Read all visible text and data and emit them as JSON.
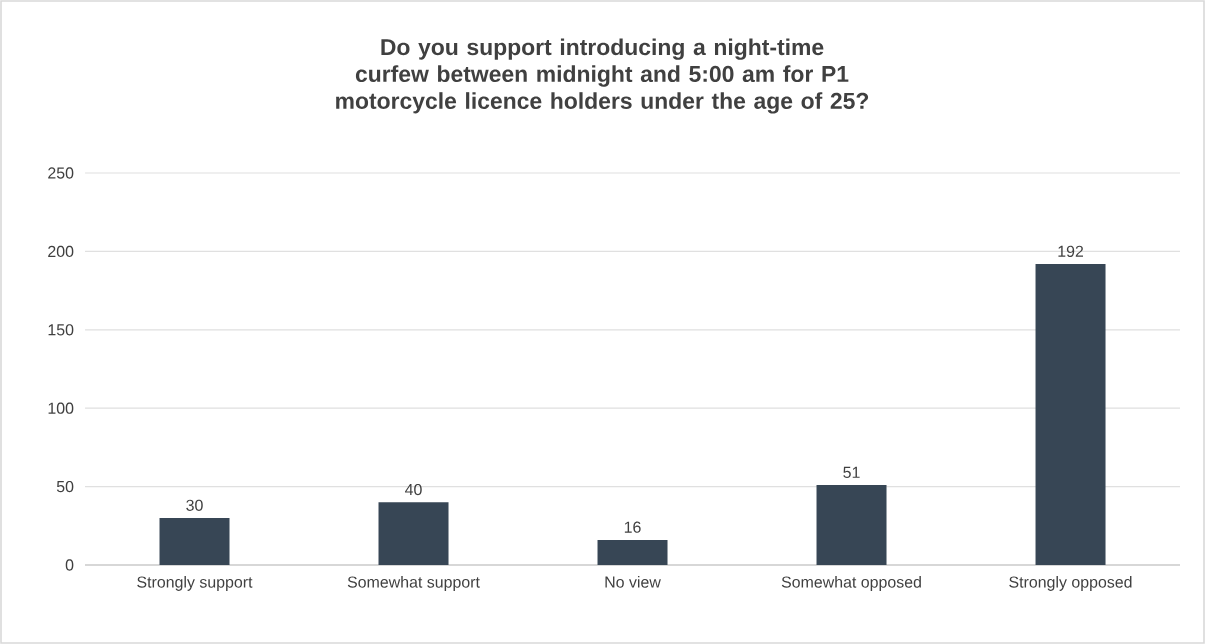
{
  "chart_data": {
    "type": "bar",
    "title": "Do you support introducing a night-time curfew between midnight and 5:00 am for P1 motorcycle licence holders under the age of 25?",
    "categories": [
      "Strongly support",
      "Somewhat support",
      "No view",
      "Somewhat opposed",
      "Strongly opposed"
    ],
    "values": [
      30,
      40,
      16,
      51,
      192
    ],
    "color": "#374655",
    "ylim": [
      0,
      250
    ],
    "yticks": [
      0,
      50,
      100,
      150,
      200,
      250
    ],
    "grid": "y",
    "data_labels": true
  }
}
